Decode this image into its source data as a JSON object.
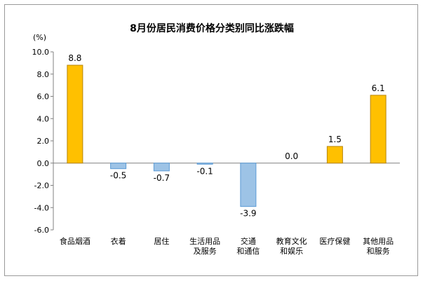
{
  "chart_data": {
    "type": "bar",
    "title": "8月份居民消费价格分类别同比涨跌幅",
    "ylabel": "(%)",
    "ylim": [
      -6.0,
      10.0
    ],
    "ticks": [
      "10.0",
      "8.0",
      "6.0",
      "4.0",
      "2.0",
      "0.0",
      "-2.0",
      "-4.0",
      "-6.0"
    ],
    "categories": [
      [
        "食品烟酒"
      ],
      [
        "衣着"
      ],
      [
        "居住"
      ],
      [
        "生活用品",
        "及服务"
      ],
      [
        "交通",
        "和通信"
      ],
      [
        "教育文化",
        "和娱乐"
      ],
      [
        "医疗保健"
      ],
      [
        "其他用品",
        "和服务"
      ]
    ],
    "values": [
      8.8,
      -0.5,
      -0.7,
      -0.1,
      -3.9,
      0.0,
      1.5,
      6.1
    ],
    "value_labels": [
      "8.8",
      "-0.5",
      "-0.7",
      "-0.1",
      "-3.9",
      "0.0",
      "1.5",
      "6.1"
    ],
    "grid": false,
    "colors": {
      "positive": "#FFC000",
      "positive_stroke": "#B8860B",
      "negative": "#9DC3E6",
      "negative_stroke": "#5B9BD5",
      "axis": "#808080"
    }
  }
}
